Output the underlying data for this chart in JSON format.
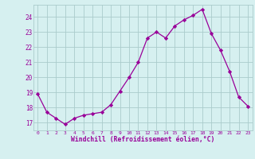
{
  "x": [
    0,
    1,
    2,
    3,
    4,
    5,
    6,
    7,
    8,
    9,
    10,
    11,
    12,
    13,
    14,
    15,
    16,
    17,
    18,
    19,
    20,
    21,
    22,
    23
  ],
  "y": [
    18.9,
    17.7,
    17.3,
    16.9,
    17.3,
    17.5,
    17.6,
    17.7,
    18.2,
    19.1,
    20.0,
    21.0,
    22.6,
    23.0,
    22.6,
    23.4,
    23.8,
    24.1,
    24.5,
    22.9,
    21.8,
    20.4,
    18.7,
    18.1
  ],
  "line_color": "#990099",
  "marker": "D",
  "marker_size": 2.2,
  "bg_color": "#d6f0f0",
  "grid_color": "#aacccc",
  "xlabel": "Windchill (Refroidissement éolien,°C)",
  "xlabel_color": "#990099",
  "tick_color": "#990099",
  "ylim": [
    16.5,
    24.8
  ],
  "yticks": [
    17,
    18,
    19,
    20,
    21,
    22,
    23,
    24
  ],
  "xlim": [
    -0.5,
    23.5
  ],
  "xticks": [
    0,
    1,
    2,
    3,
    4,
    5,
    6,
    7,
    8,
    9,
    10,
    11,
    12,
    13,
    14,
    15,
    16,
    17,
    18,
    19,
    20,
    21,
    22,
    23
  ],
  "figw": 3.2,
  "figh": 2.0,
  "dpi": 100
}
